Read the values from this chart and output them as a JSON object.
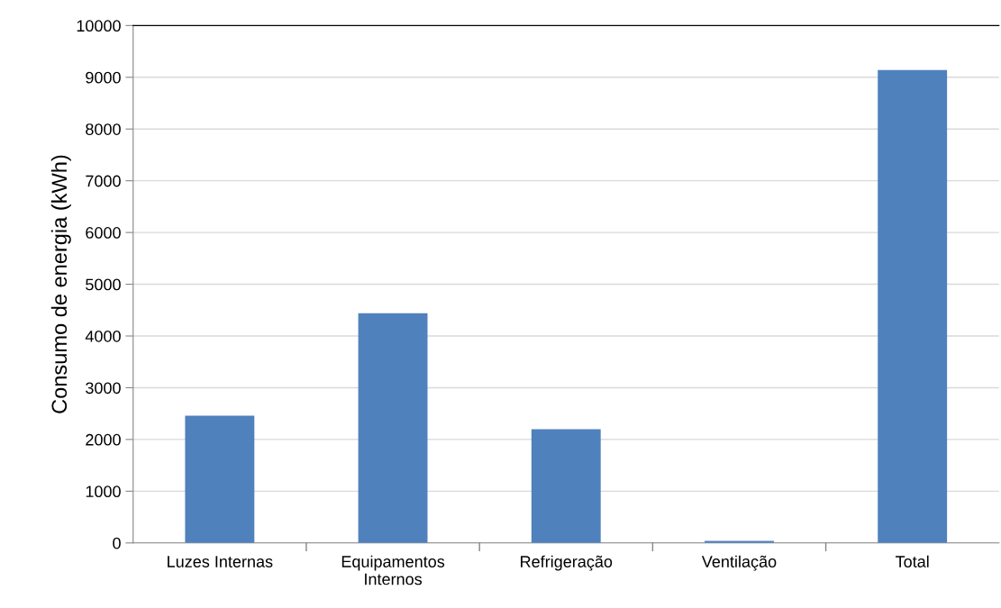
{
  "chart_data": {
    "type": "bar",
    "ylabel": "Consumo de energia (kWh)",
    "categories": [
      "Luzes Internas",
      "Equipamentos\nInternos",
      "Refrigeração",
      "Ventilação",
      "Total"
    ],
    "values": [
      2460,
      4440,
      2200,
      40,
      9140
    ],
    "color": "#4f81bd",
    "ylim": [
      0,
      10000
    ],
    "yticks": [
      0,
      1000,
      2000,
      3000,
      4000,
      5000,
      6000,
      7000,
      8000,
      9000,
      10000
    ],
    "grid": "y",
    "legend": false
  }
}
